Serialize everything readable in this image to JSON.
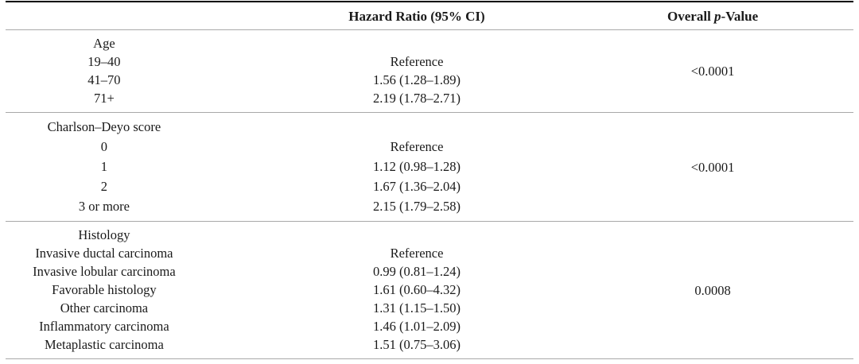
{
  "colors": {
    "rule_heavy": "#000000",
    "rule_light": "#a9a9a9",
    "text": "#1a1a1a",
    "background": "#ffffff"
  },
  "table": {
    "header": {
      "stub": "",
      "hazard_ratio": "Hazard Ratio (95% CI)",
      "p_value": {
        "prefix": "Overall ",
        "italic": "p",
        "suffix": "-Value"
      }
    },
    "sections": [
      {
        "p_value": "<0.0001",
        "rows": [
          {
            "label": "Age",
            "hr": ""
          },
          {
            "label": "19–40",
            "hr": "Reference"
          },
          {
            "label": "41–70",
            "hr": "1.56 (1.28–1.89)"
          },
          {
            "label": "71+",
            "hr": "2.19 (1.78–2.71)"
          }
        ]
      },
      {
        "p_value": "<0.0001",
        "rows": [
          {
            "label": "Charlson–Deyo score",
            "hr": ""
          },
          {
            "label": "0",
            "hr": "Reference"
          },
          {
            "label": "1",
            "hr": "1.12 (0.98–1.28)"
          },
          {
            "label": "2",
            "hr": "1.67 (1.36–2.04)"
          },
          {
            "label": "3 or more",
            "hr": "2.15 (1.79–2.58)"
          }
        ]
      },
      {
        "p_value": "0.0008",
        "rows": [
          {
            "label": "Histology",
            "hr": ""
          },
          {
            "label": "Invasive ductal carcinoma",
            "hr": "Reference"
          },
          {
            "label": "Invasive lobular carcinoma",
            "hr": "0.99 (0.81–1.24)"
          },
          {
            "label": "Favorable histology",
            "hr": "1.61 (0.60–4.32)"
          },
          {
            "label": "Other carcinoma",
            "hr": "1.31 (1.15–1.50)"
          },
          {
            "label": "Inflammatory carcinoma",
            "hr": "1.46 (1.01–2.09)"
          },
          {
            "label": "Metaplastic carcinoma",
            "hr": "1.51 (0.75–3.06)"
          }
        ]
      }
    ]
  }
}
